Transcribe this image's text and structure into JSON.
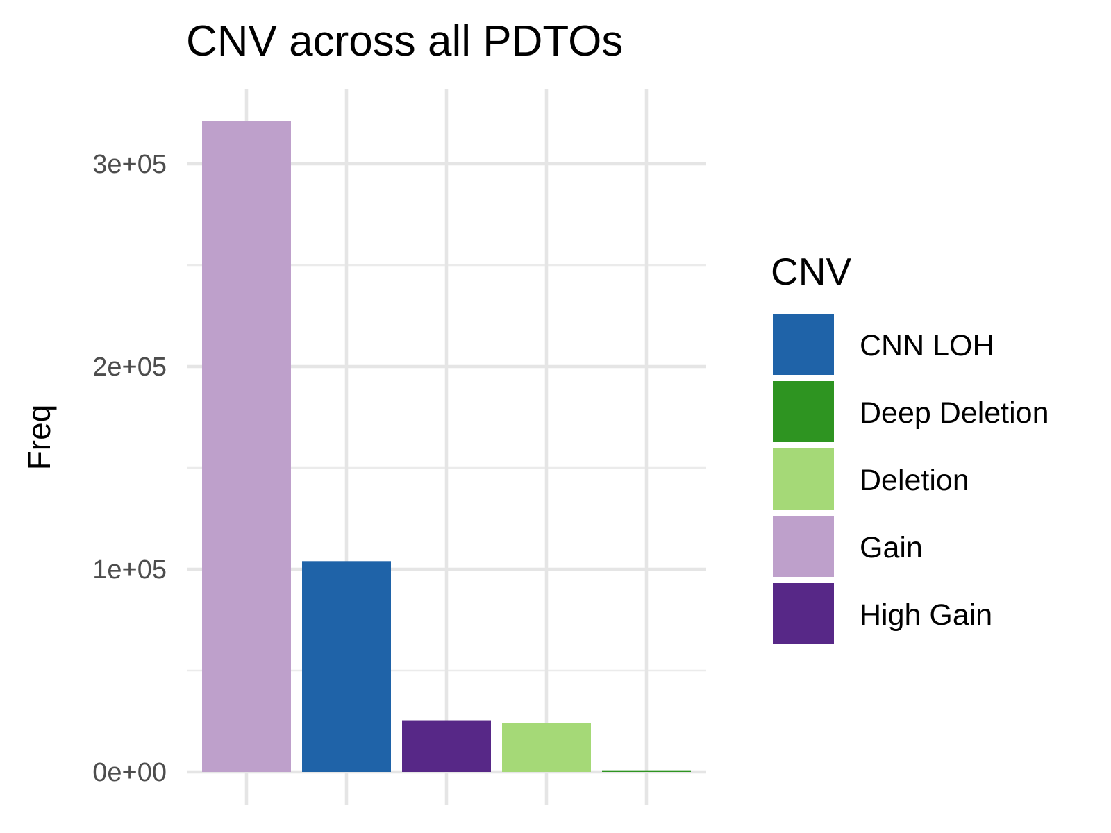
{
  "chart_data": {
    "type": "bar",
    "title": "CNV across all PDTOs",
    "xlabel": "",
    "ylabel": "Freq",
    "categories": [
      "Gain",
      "CNN LOH",
      "High Gain",
      "Deletion",
      "Deep Deletion"
    ],
    "values": [
      321000,
      104000,
      25500,
      24000,
      800
    ],
    "bar_colors": [
      "#BEA0CB",
      "#1F63A8",
      "#572887",
      "#A5D977",
      "#2E9421"
    ],
    "ylim": [
      0,
      335000
    ],
    "yticks": [
      0,
      100000,
      200000,
      300000
    ],
    "ytick_labels": [
      "0e+00",
      "1e+05",
      "2e+05",
      "3e+05"
    ],
    "yminor_ticks": [
      50000,
      150000,
      250000
    ],
    "grid": true,
    "legend": {
      "title": "CNV",
      "position": "right",
      "entries": [
        {
          "label": "CNN LOH",
          "color": "#1F63A8"
        },
        {
          "label": "Deep Deletion",
          "color": "#2E9421"
        },
        {
          "label": "Deletion",
          "color": "#A5D977"
        },
        {
          "label": "Gain",
          "color": "#BEA0CB"
        },
        {
          "label": "High Gain",
          "color": "#572887"
        }
      ]
    }
  }
}
